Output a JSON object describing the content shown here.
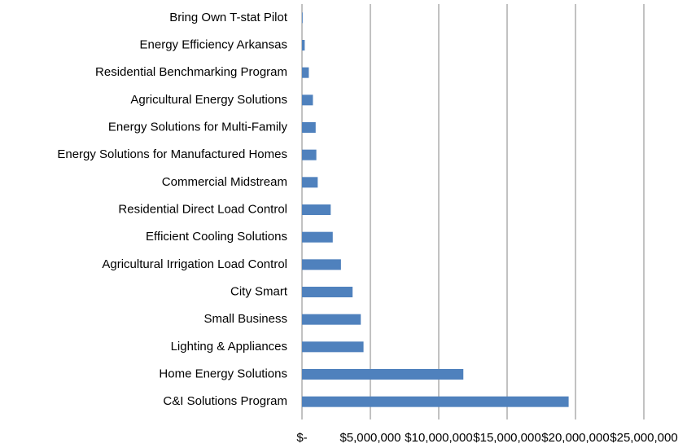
{
  "chart_data": {
    "type": "barh",
    "categories": [
      "Bring Own T-stat Pilot",
      "Energy Efficiency Arkansas",
      "Residential Benchmarking Program",
      "Agricultural Energy Solutions",
      "Energy Solutions for Multi-Family",
      "Energy Solutions for Manufactured Homes",
      "Commercial Midstream",
      "Residential Direct Load Control",
      "Efficient Cooling Solutions",
      "Agricultural Irrigation Load Control",
      "City Smart",
      "Small Business",
      "Lighting & Appliances",
      "Home Energy Solutions",
      "C&I Solutions Program"
    ],
    "values": [
      50000,
      200000,
      500000,
      800000,
      1000000,
      1050000,
      1150000,
      2100000,
      2250000,
      2850000,
      3700000,
      4300000,
      4500000,
      11800000,
      19500000
    ],
    "color": "#4f81bd",
    "xlim": [
      0,
      25000000
    ],
    "xticks": [
      {
        "value": 0,
        "label": "$-"
      },
      {
        "value": 5000000,
        "label": "$5,000,000"
      },
      {
        "value": 10000000,
        "label": "$10,000,000"
      },
      {
        "value": 15000000,
        "label": "$15,000,000"
      },
      {
        "value": 20000000,
        "label": "$20,000,000"
      },
      {
        "value": 25000000,
        "label": "$25,000,000"
      }
    ],
    "grid": true
  }
}
